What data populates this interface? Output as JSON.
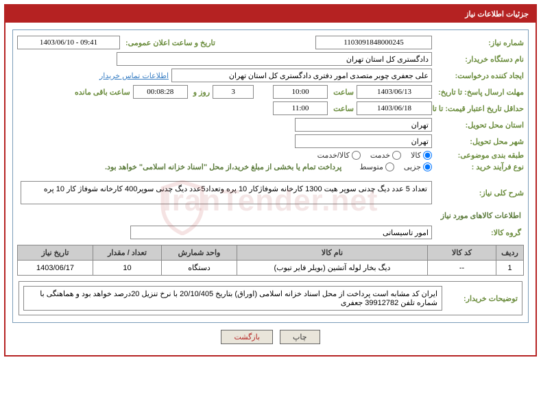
{
  "title": "جزئیات اطلاعات نیاز",
  "labels": {
    "need_no": "شماره نیاز:",
    "announce_dt": "تاریخ و ساعت اعلان عمومی:",
    "buyer_org": "نام دستگاه خریدار:",
    "requester": "ایجاد کننده درخواست:",
    "contact_link": "اطلاعات تماس خریدار",
    "deadline_send": "مهلت ارسال پاسخ: تا تاریخ:",
    "hour": "ساعت",
    "days_and": "روز و",
    "remaining": "ساعت باقی مانده",
    "min_validity": "حداقل تاریخ اعتبار قیمت: تا تاریخ:",
    "delivery_prov": "استان محل تحویل:",
    "delivery_city": "شهر محل تحویل:",
    "category": "طبقه بندی موضوعی:",
    "proc_type": "نوع فرآیند خرید :",
    "proc_note": "پرداخت تمام یا بخشی از مبلغ خرید،از محل \"اسناد خزانه اسلامی\" خواهد بود.",
    "summary": "شرح کلی نیاز:",
    "goods_info": "اطلاعات کالاهای مورد نیاز",
    "goods_group": "گروه کالا:",
    "buyer_notes": "توضیحات خریدار:"
  },
  "values": {
    "need_no": "1103091848000245",
    "announce_dt": "1403/06/10 - 09:41",
    "buyer_org": "دادگستری کل استان تهران",
    "requester": "علی جعفری چوبر متصدی امور دفتری دادگستری کل استان تهران",
    "deadline_date": "1403/06/13",
    "deadline_time": "10:00",
    "days_left": "3",
    "time_left": "00:08:28",
    "validity_date": "1403/06/18",
    "validity_time": "11:00",
    "delivery_prov": "تهران",
    "delivery_city": "تهران",
    "summary_text": "تعداد 5 عدد دیگ چدنی سوپر هیت 1300 کارخانه شوفاژکار 10 پره وتعداد5عدد دیگ چدنی  سوپر400 کارخانه شوفاژ کار 10 پره",
    "goods_group": "امور تاسیساتی",
    "buyer_notes_text": "ایران کد مشابه است پرداخت از محل اسناد خزانه اسلامی (اوراق) بتاریخ 20/10/405 با نرخ تنزیل 20درصد خواهد بود و هماهنگی با شماره تلفن 39912782 جعفری"
  },
  "radios": {
    "cat": {
      "goods": "کالا",
      "service": "خدمت",
      "goods_service": "کالا/خدمت",
      "selected": "goods"
    },
    "proc": {
      "partial": "جزیی",
      "medium": "متوسط",
      "selected": "partial"
    }
  },
  "table": {
    "headers": {
      "row": "ردیف",
      "code": "کد کالا",
      "name": "نام کالا",
      "unit": "واحد شمارش",
      "qty": "تعداد / مقدار",
      "need_date": "تاریخ نیاز"
    },
    "rows": [
      {
        "row": "1",
        "code": "--",
        "name": "دیگ بخار لوله آتشین (بویلر فایر تیوب)",
        "unit": "دستگاه",
        "qty": "10",
        "need_date": "1403/06/17"
      }
    ]
  },
  "buttons": {
    "print": "چاپ",
    "back": "بازگشت"
  },
  "watermark": "IranTender.net",
  "colors": {
    "primary": "#b52222",
    "label": "#6a8c3c",
    "border": "#7a9cb8",
    "link": "#3a7fc4",
    "th_bg": "#cecece"
  }
}
